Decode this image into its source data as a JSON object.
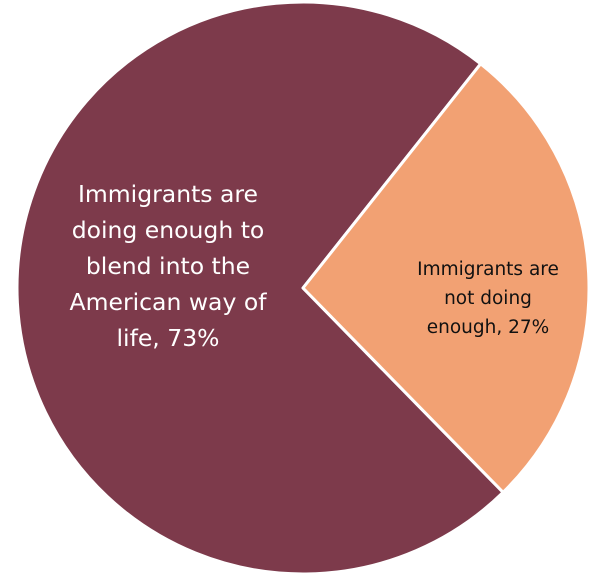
{
  "chart_data": {
    "type": "pie",
    "slices": [
      {
        "label": "Immigrants are\ndoing enough to\nblend into the\nAmerican way of\nlife, 73%",
        "value": 73,
        "color": "#7d3a4b"
      },
      {
        "label": "Immigrants are\nnot doing\nenough, 27%",
        "value": 27,
        "color": "#f2a173"
      }
    ],
    "start_angle_deg": -45,
    "direction": "clockwise",
    "slice_border_color": "#ffffff"
  }
}
